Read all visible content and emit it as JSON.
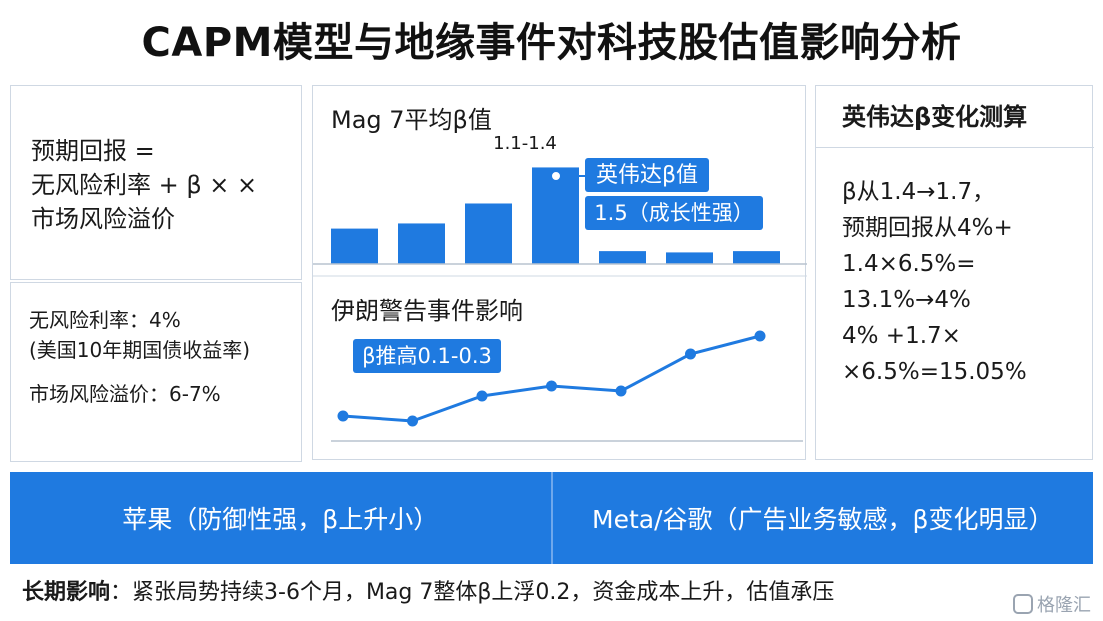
{
  "title": "CAPM模型与地缘事件对科技股估值影响分析",
  "formula": {
    "line1": "预期回报 =",
    "line2": "无风险利率  + β × ×",
    "line3": "市场风险溢价"
  },
  "risk_free": {
    "line1": "无风险利率：4%",
    "line2": "(美国10年期国债收益率)",
    "line3": "市场风险溢价：6-7%"
  },
  "mag7": {
    "title": "Mag 7平均β值",
    "bar_label": "1.1-1.4",
    "callout_line1": "英伟达β值",
    "callout_line2": "1.5（成长性强）"
  },
  "event": {
    "title": "伊朗警告事件影响",
    "callout": "β推高0.1-0.3"
  },
  "nvidia": {
    "title": "英伟达β变化测算",
    "lines": [
      "β从1.4→1.7，",
      "预期回报从4%+",
      "1.4×6.5%=",
      "13.1%→4%",
      "4% +1.7×",
      "×6.5%=15.05%"
    ]
  },
  "band": {
    "left": "苹果（防御性强，β上升小）",
    "right": "Meta/谷歌（广告业务敏感，β变化明显）"
  },
  "footer": {
    "label": "长期影响",
    "text": "：紧张局势持续3-6个月，Mag 7整体β上浮0.2，资金成本上升，估值承压"
  },
  "watermark": "格隆汇",
  "colors": {
    "accent": "#1f7ae0",
    "text": "#1a1a1a",
    "border": "#cfd8e3"
  },
  "chart_data": [
    {
      "type": "bar",
      "title": "Mag 7平均β值",
      "values": [
        0.55,
        0.63,
        0.94,
        1.5,
        0.2,
        0.18,
        0.2
      ],
      "ylim": [
        0,
        1.6
      ]
    },
    {
      "type": "line",
      "title": "伊朗警告事件影响",
      "values": [
        0.3,
        0.25,
        0.5,
        0.6,
        0.55,
        0.92,
        1.1
      ],
      "ylim": [
        0,
        1.4
      ]
    }
  ]
}
